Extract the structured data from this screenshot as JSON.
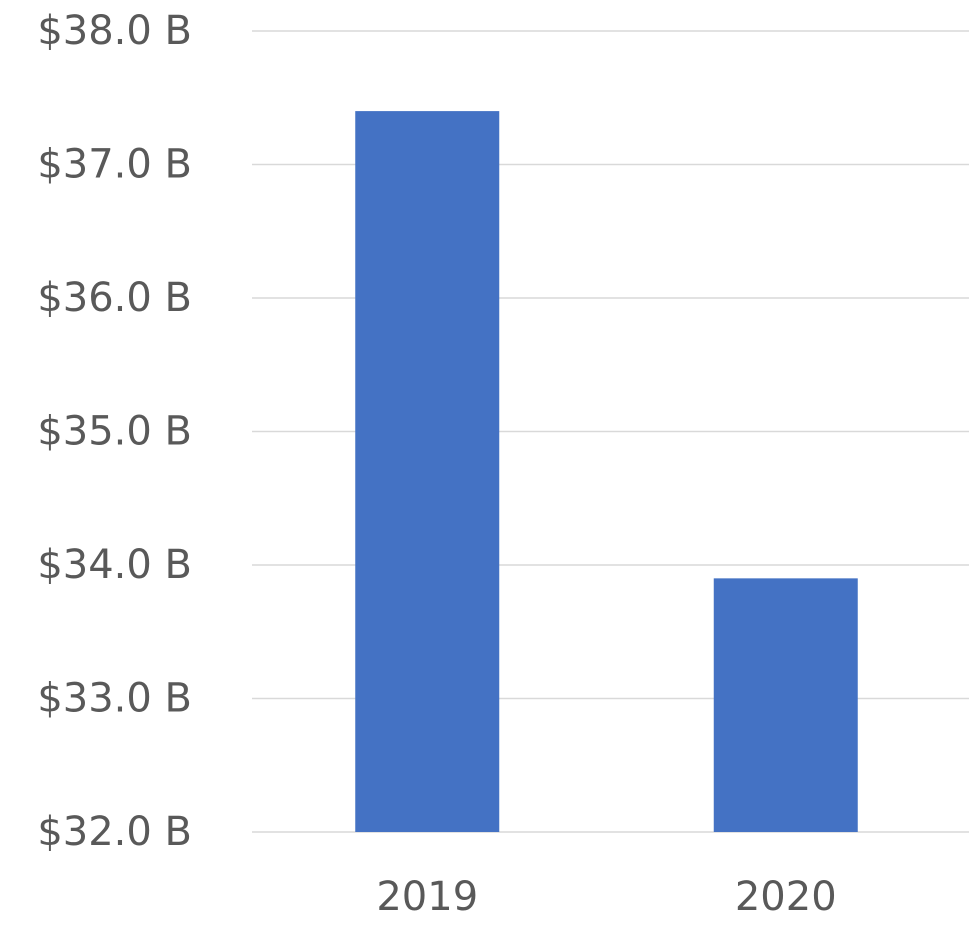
{
  "chart_data": {
    "type": "bar",
    "categories": [
      "2019",
      "2020"
    ],
    "series": [
      {
        "values": [
          37.4,
          33.9
        ],
        "color": "#4472C4"
      }
    ],
    "y_tick_labels": [
      "$32.0 B",
      "$33.0 B",
      "$34.0 B",
      "$35.0 B",
      "$36.0 B",
      "$37.0 B",
      "$38.0 B"
    ],
    "ylim": [
      32,
      38
    ],
    "y_ticks": [
      32,
      33,
      34,
      35,
      36,
      37,
      38
    ],
    "grid": true,
    "gridline_color": "#D9D9D9",
    "title": "",
    "xlabel": "",
    "ylabel": ""
  }
}
